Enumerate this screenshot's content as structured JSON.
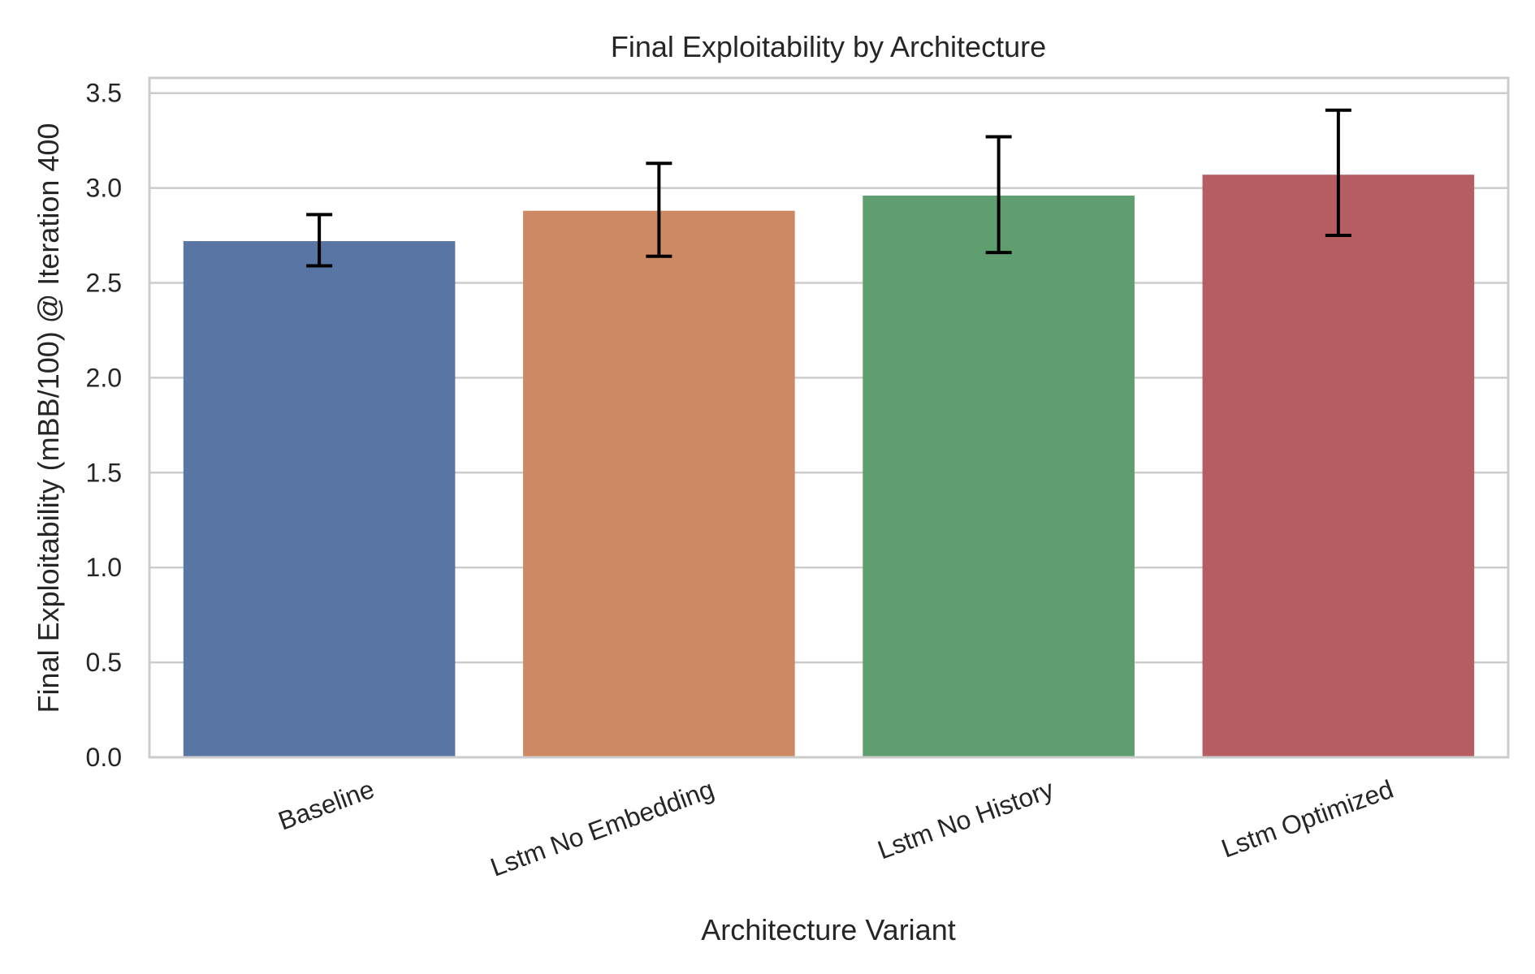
{
  "chart_data": {
    "type": "bar",
    "title": "Final Exploitability by Architecture",
    "xlabel": "Architecture Variant",
    "ylabel": "Final Exploitability (mBB/100) @ Iteration 400",
    "categories": [
      "Baseline",
      "Lstm No Embedding",
      "Lstm No History",
      "Lstm Optimized"
    ],
    "values": [
      2.72,
      2.88,
      2.96,
      3.07
    ],
    "error_low": [
      2.59,
      2.64,
      2.66,
      2.75
    ],
    "error_high": [
      2.86,
      3.13,
      3.27,
      3.41
    ],
    "colors": [
      "#5975a4",
      "#cc8963",
      "#5f9e6e",
      "#b55d60"
    ],
    "ylim": [
      0,
      3.58
    ],
    "yticks": [
      0.0,
      0.5,
      1.0,
      1.5,
      2.0,
      2.5,
      3.0,
      3.5
    ],
    "ytick_labels": [
      "0.0",
      "0.5",
      "1.0",
      "1.5",
      "2.0",
      "2.5",
      "3.0",
      "3.5"
    ],
    "grid": "horizontal",
    "xtick_rotation": 20
  }
}
